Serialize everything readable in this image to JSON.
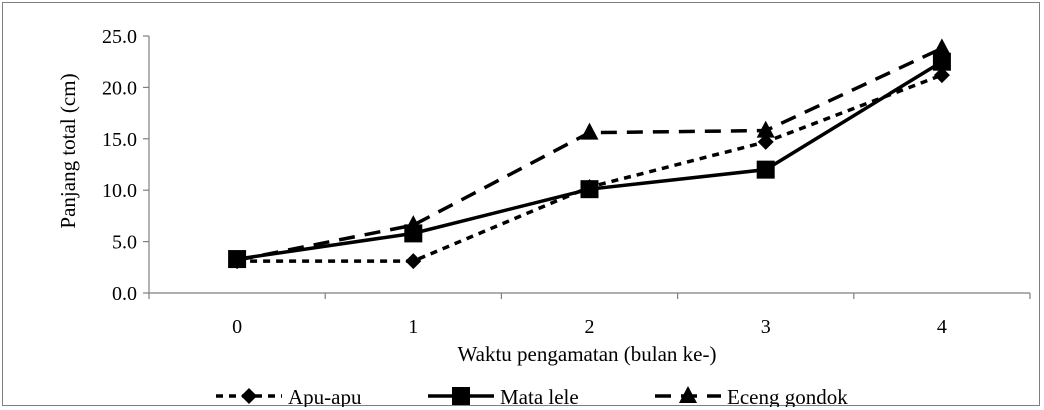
{
  "chart_data": {
    "type": "line",
    "xlabel": "Waktu pengamatan  (bulan ke-)",
    "ylabel": "Panjang total (cm)",
    "categories": [
      "0",
      "1",
      "2",
      "3",
      "4"
    ],
    "ylim": [
      0,
      25
    ],
    "yticks": [
      "0.0",
      "5.0",
      "10.0",
      "15.0",
      "20.0",
      "25.0"
    ],
    "ytick_values": [
      0,
      5,
      10,
      15,
      20,
      25
    ],
    "grid": false,
    "legend_position": "bottom",
    "series": [
      {
        "name": "Apu-apu",
        "values": [
          3.1,
          3.1,
          10.3,
          14.7,
          21.2
        ],
        "marker": "diamond",
        "dash": "short-dash",
        "color": "#000000"
      },
      {
        "name": "Mata lele",
        "values": [
          3.3,
          5.8,
          10.1,
          12.0,
          22.5
        ],
        "marker": "square",
        "dash": "solid",
        "color": "#000000"
      },
      {
        "name": "Eceng gondok",
        "values": [
          3.2,
          6.6,
          15.6,
          15.8,
          23.8
        ],
        "marker": "triangle",
        "dash": "long-dash",
        "color": "#000000"
      }
    ]
  }
}
